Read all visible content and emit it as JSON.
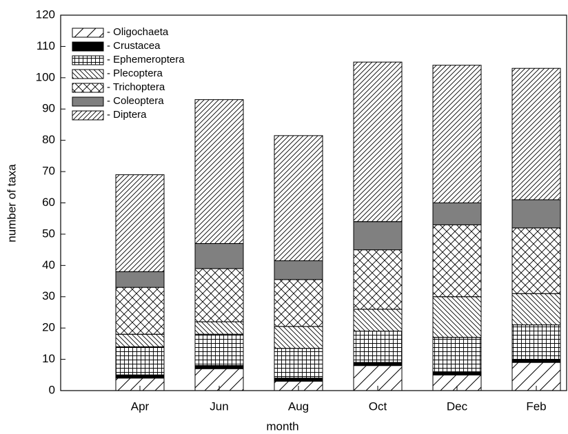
{
  "chart_data": {
    "type": "stacked-bar",
    "x_label": "month",
    "y_label": "number of taxa",
    "categories": [
      "Apr",
      "Jun",
      "Aug",
      "Oct",
      "Dec",
      "Feb"
    ],
    "series": [
      {
        "name": "- Oligochaeta",
        "color": "#000000",
        "pattern": "diag-wide",
        "values": [
          4,
          7,
          3,
          8,
          5,
          9
        ]
      },
      {
        "name": "- Crustacea",
        "color": "#000000",
        "pattern": "solid",
        "values": [
          1,
          1,
          1,
          1,
          1,
          1
        ]
      },
      {
        "name": "- Ephemeroptera",
        "color": "#000000",
        "pattern": "grid",
        "values": [
          9,
          10,
          9.5,
          10,
          11,
          11
        ]
      },
      {
        "name": "- Plecoptera",
        "color": "#000000",
        "pattern": "back-diag",
        "values": [
          4,
          4,
          7,
          7,
          13,
          10
        ]
      },
      {
        "name": "- Trichoptera",
        "color": "#000000",
        "pattern": "crosshatch",
        "values": [
          15,
          17,
          15,
          19,
          23,
          21
        ]
      },
      {
        "name": "- Coleoptera",
        "color": "#808080",
        "pattern": "solid",
        "values": [
          5,
          8,
          6,
          9,
          7,
          9
        ]
      },
      {
        "name": "- Diptera",
        "color": "#000000",
        "pattern": "diag",
        "values": [
          31,
          46,
          40,
          51,
          44,
          42
        ]
      }
    ],
    "ylim": [
      0,
      120
    ],
    "yticks": [
      0,
      10,
      20,
      30,
      40,
      50,
      60,
      70,
      80,
      90,
      100,
      110,
      120
    ],
    "legend": "top-left"
  }
}
